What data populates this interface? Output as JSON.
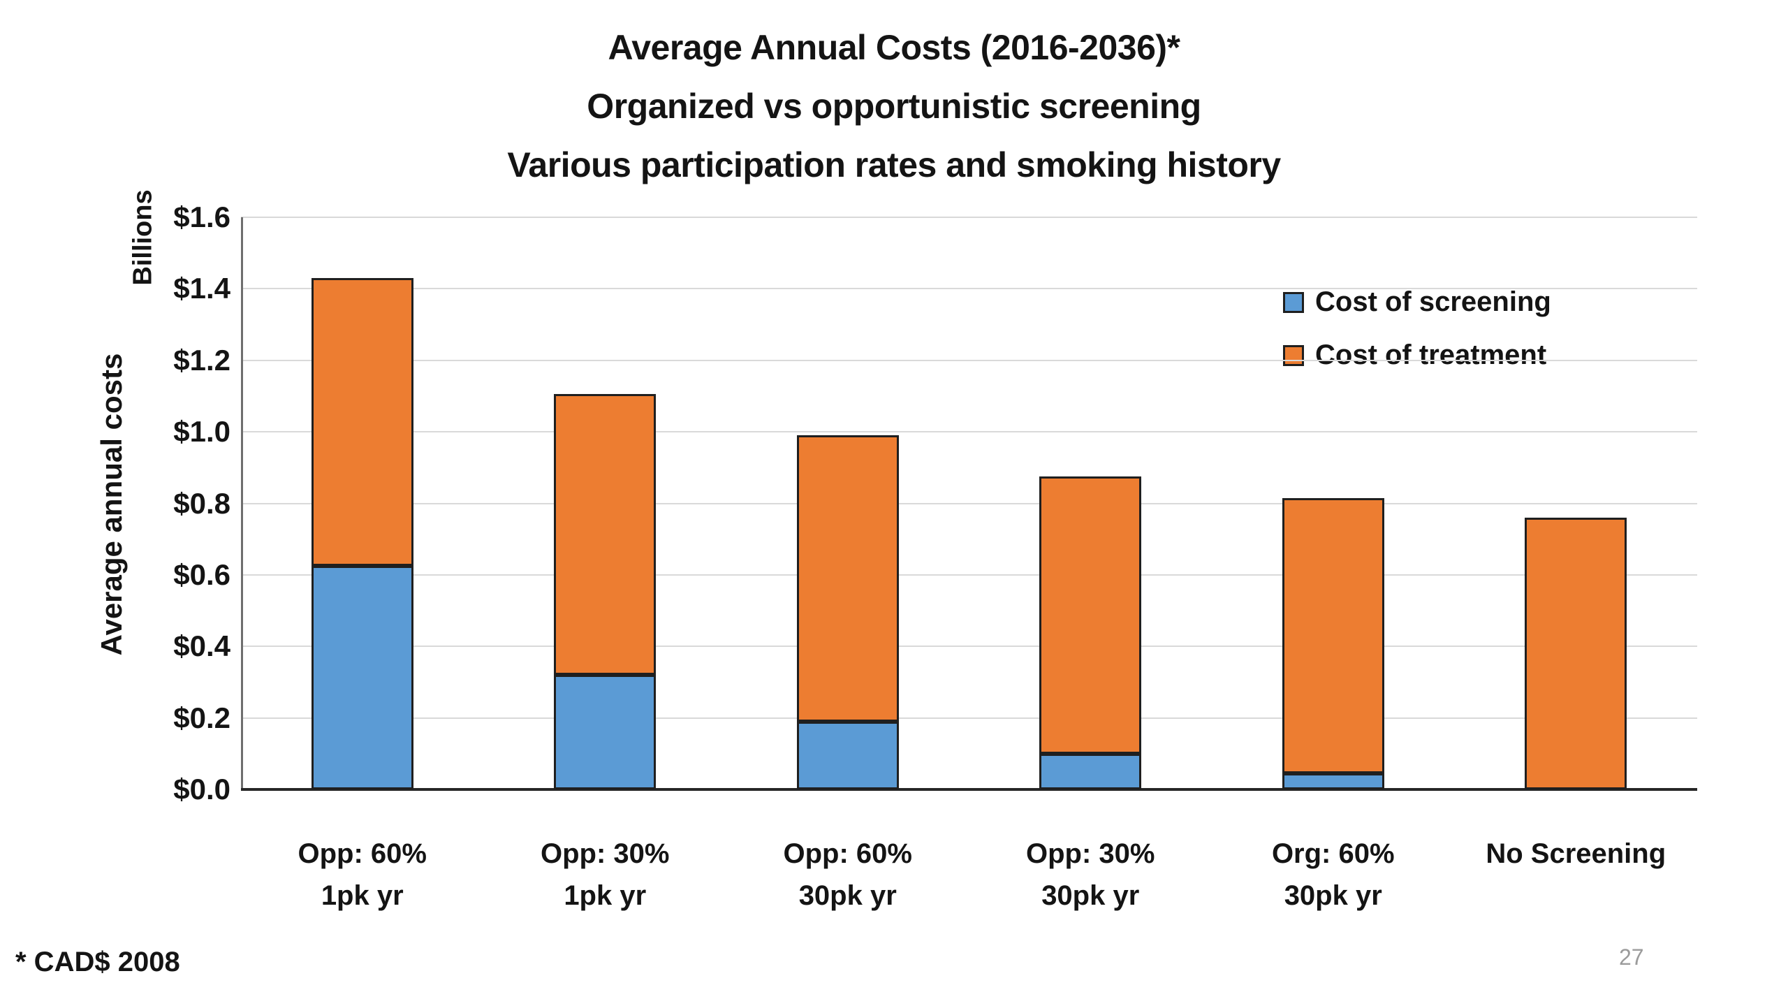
{
  "title": {
    "line1": "Average Annual Costs (2016-2036)*",
    "line2": "Organized vs opportunistic screening",
    "line3": "Various participation rates and smoking history"
  },
  "y_axis": {
    "unit_label": "Billions",
    "axis_label": "Average annual costs",
    "ticks": [
      "$1.6",
      "$1.4",
      "$1.2",
      "$1.0",
      "$0.8",
      "$0.6",
      "$0.4",
      "$0.2",
      "$0.0"
    ]
  },
  "legend": {
    "items": [
      {
        "label": "Cost of screening",
        "color": "#5B9BD5"
      },
      {
        "label": "Cost of treatment",
        "color": "#ED7D31"
      }
    ]
  },
  "footnote": "* CAD$ 2008",
  "page_number": "27",
  "chart_data": {
    "type": "bar",
    "stacked": true,
    "title": "Average Annual Costs (2016-2036)* Organized vs opportunistic screening Various participation rates and smoking history",
    "xlabel": "",
    "ylabel": "Average annual costs (Billions)",
    "ylim": [
      0,
      1.6
    ],
    "ytick_step": 0.2,
    "grid": true,
    "legend_position": "upper-right",
    "categories": [
      {
        "line1": "Opp: 60%",
        "line2": "1pk yr"
      },
      {
        "line1": "Opp: 30%",
        "line2": "1pk yr"
      },
      {
        "line1": "Opp: 60%",
        "line2": "30pk yr"
      },
      {
        "line1": "Opp: 30%",
        "line2": "30pk yr"
      },
      {
        "line1": "Org: 60%",
        "line2": "30pk yr"
      },
      {
        "line1": "No Screening",
        "line2": ""
      }
    ],
    "series": [
      {
        "name": "Cost of screening",
        "color": "#5B9BD5",
        "values": [
          0.625,
          0.32,
          0.19,
          0.1,
          0.045,
          0
        ]
      },
      {
        "name": "Cost of treatment",
        "color": "#ED7D31",
        "values": [
          0.805,
          0.785,
          0.8,
          0.775,
          0.77,
          0.76
        ]
      }
    ],
    "stack_totals": [
      1.43,
      1.105,
      0.99,
      0.875,
      0.815,
      0.76
    ]
  }
}
